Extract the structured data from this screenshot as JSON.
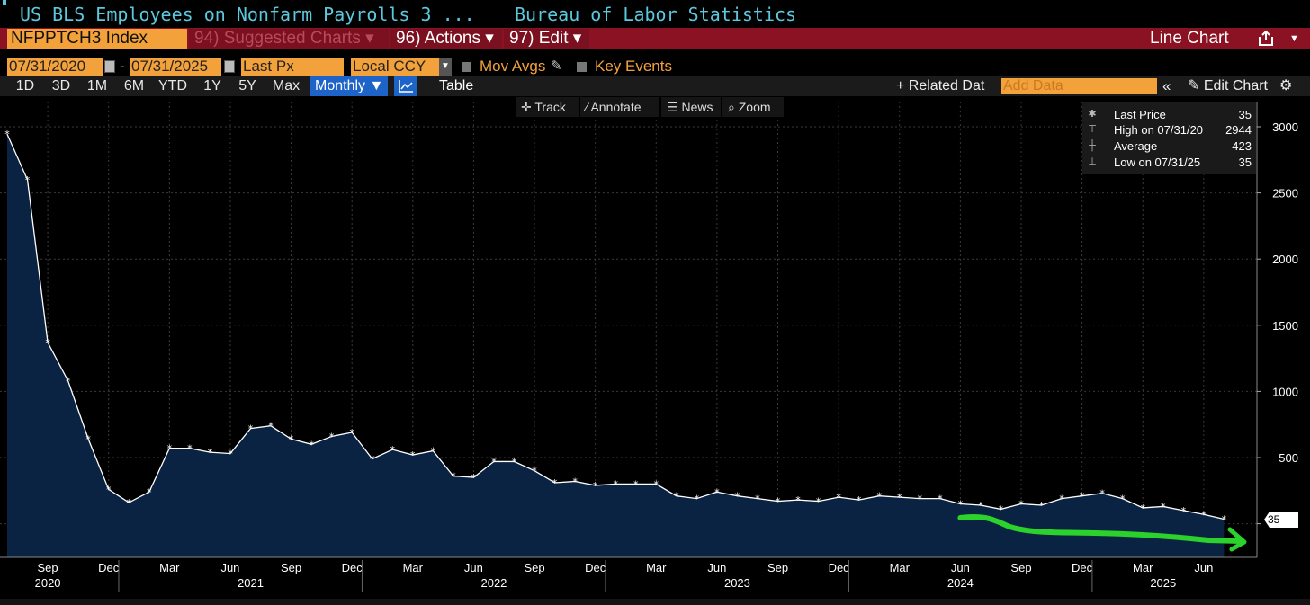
{
  "header": {
    "security_title": "US BLS Employees on Nonfarm Payrolls 3 ...",
    "source": "Bureau of Labor Statistics"
  },
  "command_bar": {
    "ticker": "NFPPTCH3 Index",
    "suggested": "94) Suggested Charts ▾",
    "actions": "96) Actions ▾",
    "edit": "97) Edit ▾",
    "chart_type": "Line Chart"
  },
  "controls": {
    "start_date": "07/31/2020",
    "end_date": "07/31/2025",
    "dash": "-",
    "field": "Last Px",
    "currency": "Local CCY",
    "mov_avgs": "Mov Avgs",
    "key_events": "Key Events"
  },
  "ranges": [
    "1D",
    "3D",
    "1M",
    "6M",
    "YTD",
    "1Y",
    "5Y",
    "Max"
  ],
  "period": "Monthly ▼",
  "table_label": "Table",
  "related": "+ Related Dat",
  "add_data_placeholder": "Add Data",
  "collapse": "«",
  "edit_chart": "Edit Chart",
  "tools": [
    "Track",
    "Annotate",
    "News",
    "Zoom"
  ],
  "tool_icons": [
    "crosshair-icon",
    "pencil-icon",
    "news-icon",
    "magnifier-icon"
  ],
  "legend": {
    "rows": [
      {
        "icon": "asterisk-icon",
        "label": "Last Price",
        "value": "35"
      },
      {
        "icon": "high-marker-icon",
        "label": "High on 07/31/20",
        "value": "2944"
      },
      {
        "icon": "average-marker-icon",
        "label": "Average",
        "value": "423"
      },
      {
        "icon": "low-marker-icon",
        "label": "Low on 07/31/25",
        "value": "35"
      }
    ]
  },
  "last_price_tag": "35",
  "colors": {
    "background": "#000000",
    "area_fill": "#0b2342",
    "line": "#ffffff",
    "ticker_orange": "#f3a23b",
    "command_red": "#8b1222",
    "title_cyan": "#5bc8dd",
    "monthly_blue": "#1e64c8",
    "annotation_green": "#2bd22b"
  },
  "chart_data": {
    "type": "area",
    "x": [
      "2020-07",
      "2020-08",
      "2020-09",
      "2020-10",
      "2020-11",
      "2020-12",
      "2021-01",
      "2021-02",
      "2021-03",
      "2021-04",
      "2021-05",
      "2021-06",
      "2021-07",
      "2021-08",
      "2021-09",
      "2021-10",
      "2021-11",
      "2021-12",
      "2022-01",
      "2022-02",
      "2022-03",
      "2022-04",
      "2022-05",
      "2022-06",
      "2022-07",
      "2022-08",
      "2022-09",
      "2022-10",
      "2022-11",
      "2022-12",
      "2023-01",
      "2023-02",
      "2023-03",
      "2023-04",
      "2023-05",
      "2023-06",
      "2023-07",
      "2023-08",
      "2023-09",
      "2023-10",
      "2023-11",
      "2023-12",
      "2024-01",
      "2024-02",
      "2024-03",
      "2024-04",
      "2024-05",
      "2024-06",
      "2024-07",
      "2024-08",
      "2024-09",
      "2024-10",
      "2024-11",
      "2024-12",
      "2025-01",
      "2025-02",
      "2025-03",
      "2025-04",
      "2025-05",
      "2025-06",
      "2025-07"
    ],
    "values": [
      2944,
      2600,
      1370,
      1080,
      640,
      260,
      160,
      240,
      570,
      570,
      540,
      530,
      720,
      740,
      640,
      600,
      660,
      690,
      490,
      560,
      520,
      550,
      360,
      350,
      470,
      470,
      400,
      310,
      320,
      290,
      300,
      300,
      300,
      210,
      190,
      240,
      210,
      190,
      170,
      180,
      170,
      200,
      180,
      210,
      200,
      190,
      190,
      150,
      140,
      110,
      150,
      140,
      190,
      210,
      230,
      190,
      120,
      130,
      100,
      70,
      35
    ],
    "ylim": [
      -250,
      3050
    ],
    "y_ticks": [
      3000,
      2500,
      2000,
      1500,
      1000,
      500,
      0
    ],
    "y_tick_labels": [
      "3000",
      "2500",
      "2000",
      "1500",
      "1000",
      "500",
      ""
    ],
    "x_tick_labels": [
      {
        "date": "2020-09",
        "label": "Sep"
      },
      {
        "date": "2020-12",
        "label": "Dec"
      },
      {
        "date": "2021-03",
        "label": "Mar"
      },
      {
        "date": "2021-06",
        "label": "Jun"
      },
      {
        "date": "2021-09",
        "label": "Sep"
      },
      {
        "date": "2021-12",
        "label": "Dec"
      },
      {
        "date": "2022-03",
        "label": "Mar"
      },
      {
        "date": "2022-06",
        "label": "Jun"
      },
      {
        "date": "2022-09",
        "label": "Sep"
      },
      {
        "date": "2022-12",
        "label": "Dec"
      },
      {
        "date": "2023-03",
        "label": "Mar"
      },
      {
        "date": "2023-06",
        "label": "Jun"
      },
      {
        "date": "2023-09",
        "label": "Sep"
      },
      {
        "date": "2023-12",
        "label": "Dec"
      },
      {
        "date": "2024-03",
        "label": "Mar"
      },
      {
        "date": "2024-06",
        "label": "Jun"
      },
      {
        "date": "2024-09",
        "label": "Sep"
      },
      {
        "date": "2024-12",
        "label": "Dec"
      },
      {
        "date": "2025-03",
        "label": "Mar"
      },
      {
        "date": "2025-06",
        "label": "Jun"
      }
    ],
    "year_labels": [
      {
        "date": "2020-09",
        "label": "2020"
      },
      {
        "date": "2021-07",
        "label": "2021"
      },
      {
        "date": "2022-07",
        "label": "2022"
      },
      {
        "date": "2023-07",
        "label": "2023"
      },
      {
        "date": "2024-06",
        "label": "2024"
      },
      {
        "date": "2025-04",
        "label": "2025"
      }
    ],
    "grid": true,
    "annotation": {
      "type": "hand-drawn arrow",
      "from": "2024-06",
      "to": "2025-08",
      "color": "#2bd22b"
    }
  }
}
